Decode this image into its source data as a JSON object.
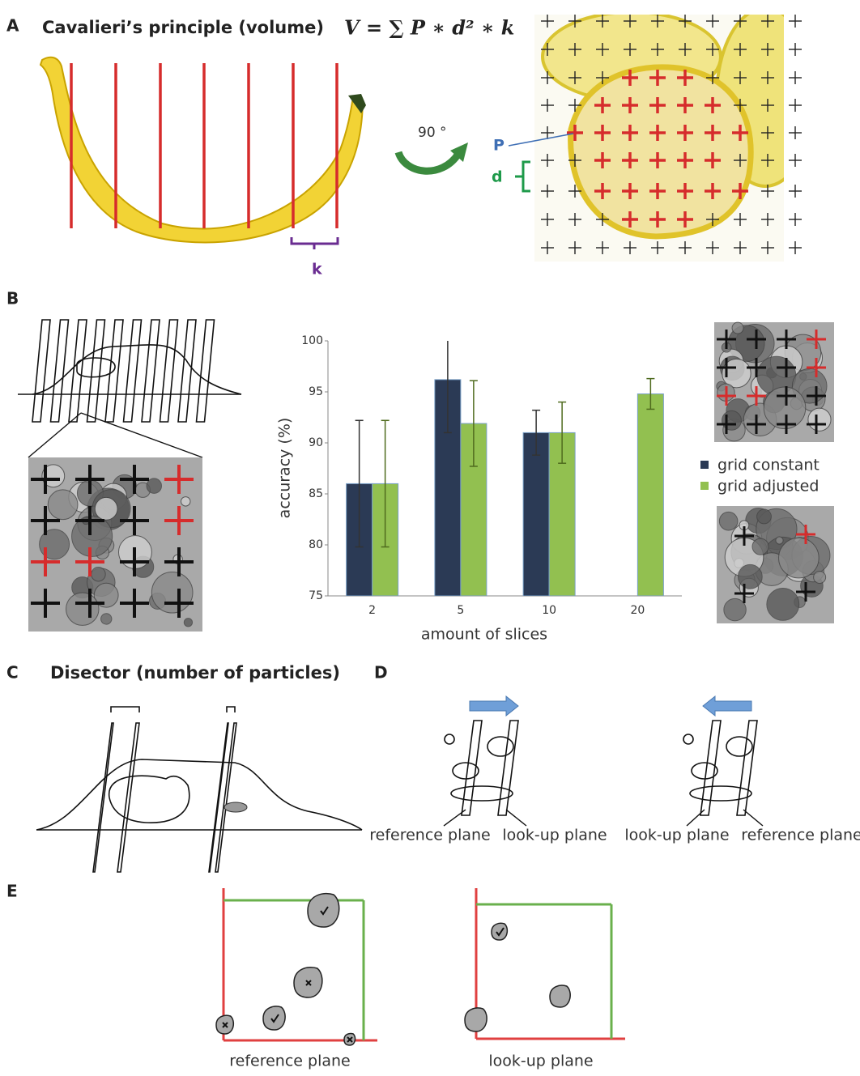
{
  "panel_a": {
    "letter": "A",
    "title": "Cavalieri’s principle (volume)",
    "formula": "V = ∑ P ∗ d² ∗ k",
    "rotation": "90 °",
    "point_label": "P",
    "distance_label": "d",
    "thickness_label": "k"
  },
  "panel_b": {
    "letter": "B"
  },
  "chart_data": {
    "type": "bar",
    "categories": [
      "2",
      "5",
      "10",
      "20"
    ],
    "series": [
      {
        "name": "grid constant",
        "color": "#2b3a55",
        "values": [
          86,
          96.2,
          91,
          null
        ],
        "errors": [
          6.2,
          5.2,
          2.2,
          null
        ]
      },
      {
        "name": "grid adjusted",
        "color": "#92c050",
        "values": [
          86,
          91.9,
          91,
          94.8
        ],
        "errors": [
          6.2,
          4.2,
          3,
          1.5
        ]
      }
    ],
    "ylim": [
      75,
      100
    ],
    "yticks": [
      75,
      80,
      85,
      90,
      95,
      100
    ],
    "y_label": "accuracy (%)",
    "x_label": "amount of slices",
    "error_color": "#333333"
  },
  "panel_c": {
    "letter": "C",
    "title": "Disector (number of particles)"
  },
  "panel_d": {
    "letter": "D",
    "left": [
      "reference plane",
      "look-up plane"
    ],
    "right": [
      "look-up plane",
      "reference plane"
    ]
  },
  "panel_e": {
    "letter": "E",
    "left": "reference plane",
    "right": "look-up plane"
  }
}
